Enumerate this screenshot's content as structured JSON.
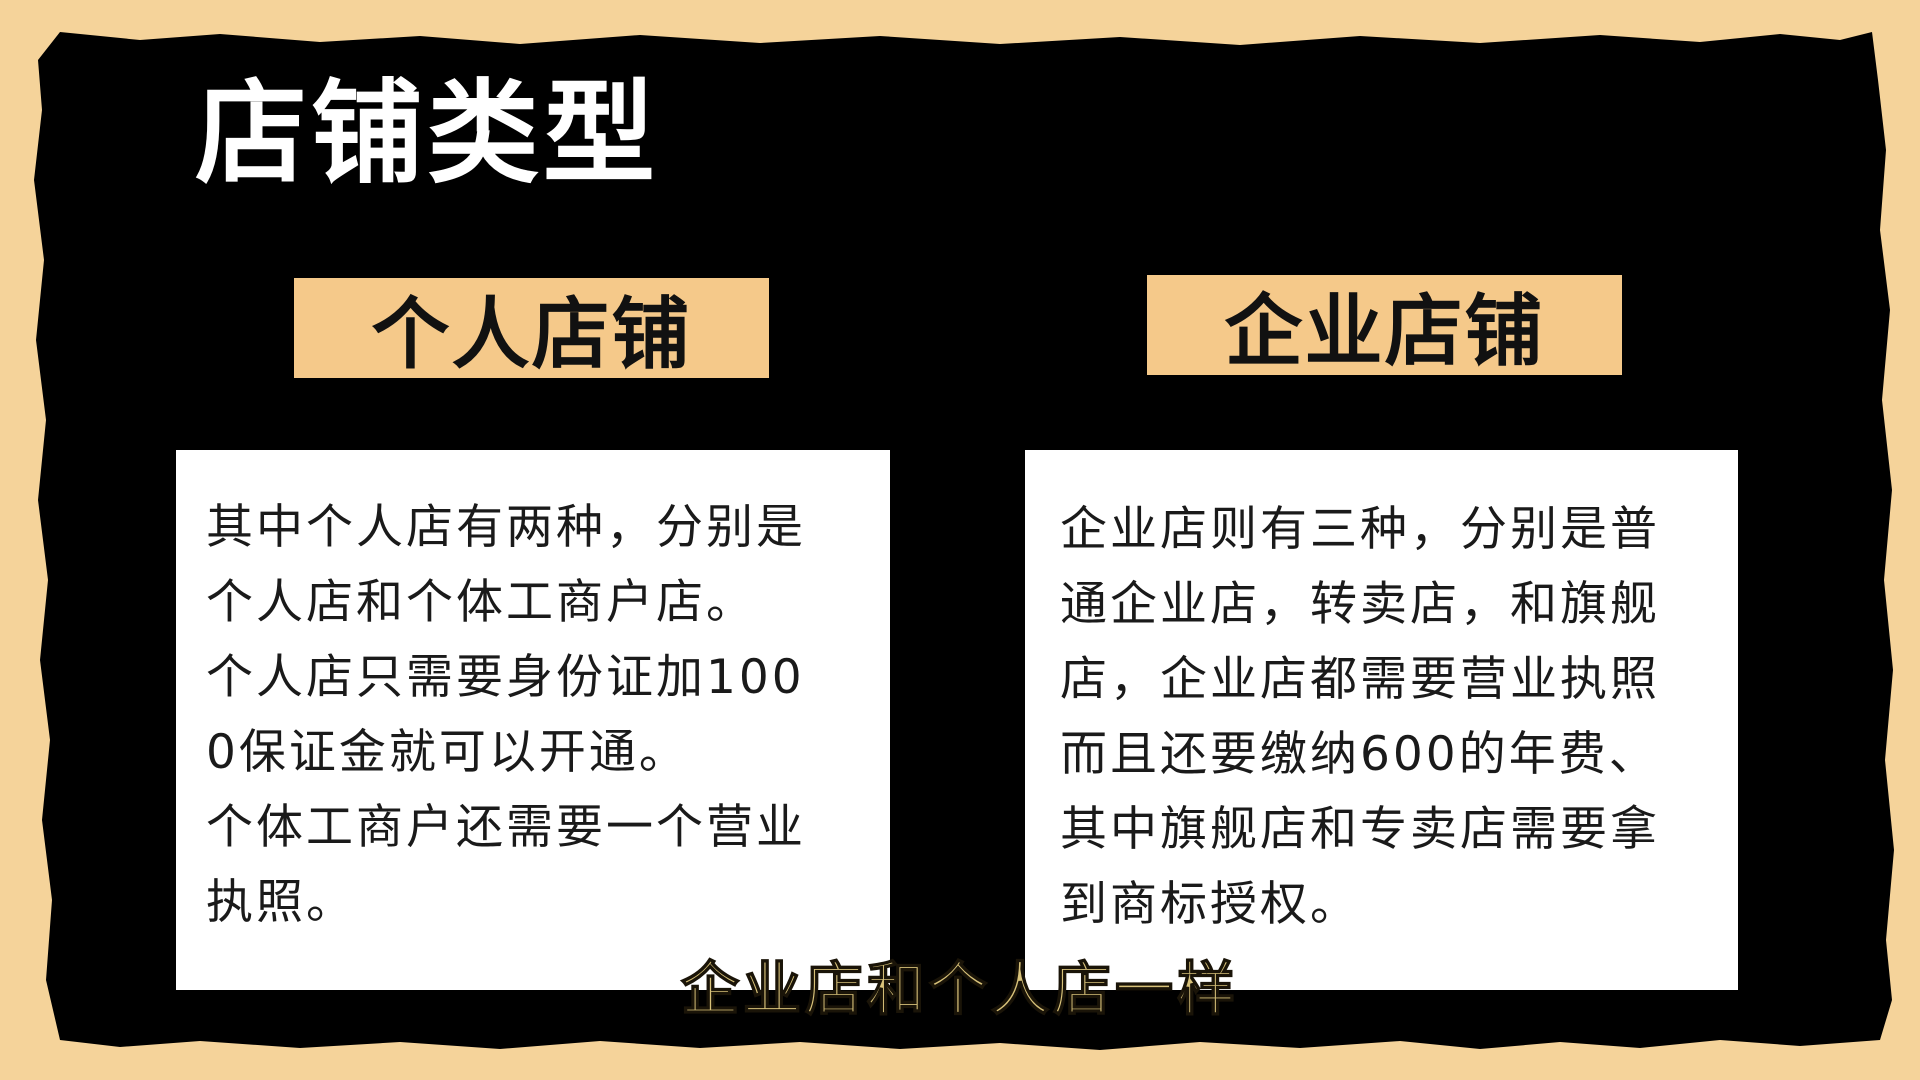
{
  "colors": {
    "outer_background": "#f5d39a",
    "panel_background": "#000000",
    "label_background": "#f5c98a",
    "card_background": "#ffffff",
    "subtitle_color": "#d8c27a"
  },
  "title": "店铺类型",
  "personal": {
    "label": "个人店铺",
    "lines": [
      "其中个人店有两种，分别是",
      "个人店和个体工商户店。",
      "个人店只需要身份证加100",
      "0保证金就可以开通。",
      "个体工商户还需要一个营业",
      "执照。"
    ]
  },
  "enterprise": {
    "label": "企业店铺",
    "lines": [
      "企业店则有三种，分别是普",
      "通企业店，转卖店，和旗舰",
      "店，企业店都需要营业执照",
      "而且还要缴纳600的年费、",
      "其中旗舰店和专卖店需要拿",
      "到商标授权。"
    ]
  },
  "subtitle": "企业店和个人店一样"
}
